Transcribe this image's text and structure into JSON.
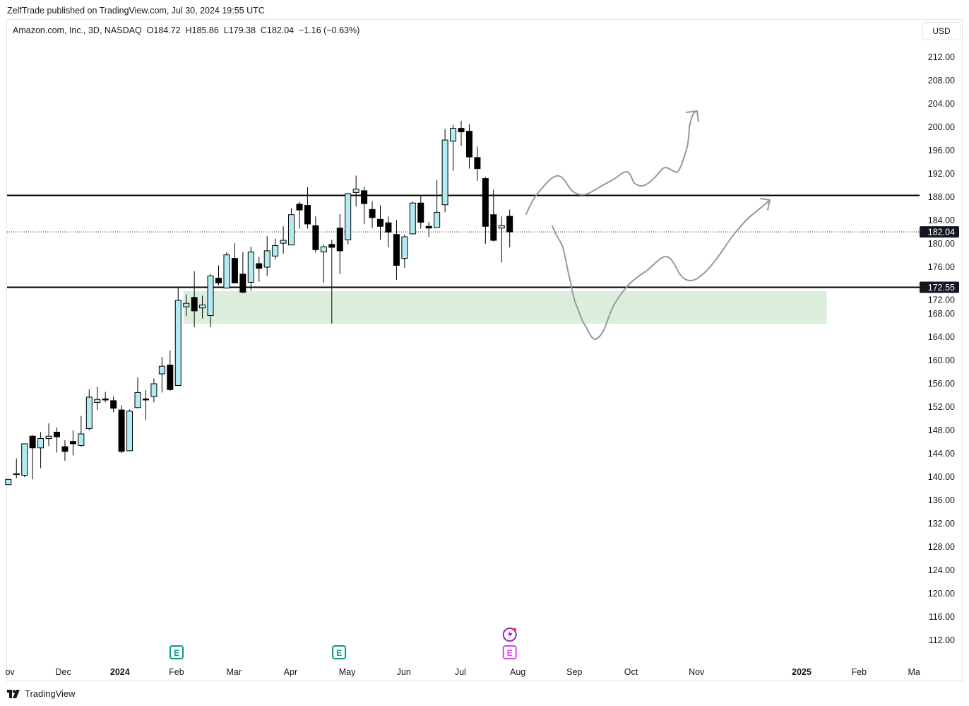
{
  "header": {
    "published": "ZelfTrade published on TradingView.com, Jul 30, 2024 19:55 UTC",
    "legend": "Amazon.com, Inc., 3D, NASDAQ  O184.72  H185.86  L179.38  C182.04  −1.16 (−0.63%)",
    "currency": "USD"
  },
  "footer": {
    "brand": "TradingView"
  },
  "colors": {
    "up": "#b2ebf2",
    "down": "#000000",
    "zone": "#dbeedc",
    "drawing": "#9598a1"
  },
  "chart_data": {
    "type": "candlestick",
    "symbol": "Amazon.com, Inc.",
    "interval": "3D",
    "exchange": "NASDAQ",
    "ylim": [
      110,
      214
    ],
    "y_ticks": [
      "212.00",
      "208.00",
      "204.00",
      "200.00",
      "196.00",
      "192.00",
      "188.00",
      "184.00",
      "180.00",
      "176.00",
      "172.00",
      "168.00",
      "164.00",
      "160.00",
      "156.00",
      "152.00",
      "148.00",
      "144.00",
      "140.00",
      "136.00",
      "132.00",
      "128.00",
      "124.00",
      "120.00",
      "116.00",
      "112.00"
    ],
    "x_ticks": [
      {
        "label": "ov",
        "bold": false,
        "bar": 0.2
      },
      {
        "label": "Dec",
        "bold": false,
        "bar": 6.8
      },
      {
        "label": "2024",
        "bold": true,
        "bar": 13.8
      },
      {
        "label": "Feb",
        "bold": false,
        "bar": 20.8
      },
      {
        "label": "Mar",
        "bold": false,
        "bar": 27.9
      },
      {
        "label": "Apr",
        "bold": false,
        "bar": 34.9
      },
      {
        "label": "May",
        "bold": false,
        "bar": 41.9
      },
      {
        "label": "Jun",
        "bold": false,
        "bar": 48.9
      },
      {
        "label": "Jul",
        "bold": false,
        "bar": 55.9
      },
      {
        "label": "Aug",
        "bold": false,
        "bar": 63
      },
      {
        "label": "Sep",
        "bold": false,
        "bar": 70
      },
      {
        "label": "Oct",
        "bold": false,
        "bar": 77
      },
      {
        "label": "Nov",
        "bold": false,
        "bar": 85.1
      },
      {
        "label": "2025",
        "bold": true,
        "bar": 98.1
      },
      {
        "label": "Feb",
        "bold": false,
        "bar": 105.2
      },
      {
        "label": "Ma",
        "bold": false,
        "bar": 112
      }
    ],
    "ohlc": [
      [
        138.7,
        139.6,
        138.6,
        139.6
      ],
      [
        140.6,
        143.2,
        139.8,
        140.6
      ],
      [
        140.3,
        145.7,
        140.0,
        145.7
      ],
      [
        147.0,
        147.2,
        139.6,
        145.0
      ],
      [
        145.0,
        147.7,
        141.5,
        146.6
      ],
      [
        146.6,
        149.2,
        145.3,
        147.0
      ],
      [
        147.7,
        148.5,
        144.2,
        146.9
      ],
      [
        145.2,
        146.3,
        142.8,
        144.4
      ],
      [
        146.1,
        148.0,
        143.7,
        145.7
      ],
      [
        145.4,
        150.5,
        145.2,
        147.4
      ],
      [
        148.3,
        155.0,
        148.0,
        153.7
      ],
      [
        152.8,
        155.5,
        151.5,
        153.3
      ],
      [
        153.4,
        154.6,
        152.8,
        153.3
      ],
      [
        153.1,
        153.8,
        151.1,
        151.8
      ],
      [
        151.5,
        152.3,
        144.1,
        144.4
      ],
      [
        144.5,
        151.6,
        144.5,
        151.3
      ],
      [
        151.9,
        157.1,
        151.9,
        154.5
      ],
      [
        153.4,
        154.9,
        149.8,
        153.3
      ],
      [
        153.8,
        156.9,
        152.8,
        156.0
      ],
      [
        157.7,
        160.6,
        154.5,
        159.0
      ],
      [
        159.2,
        161.7,
        154.8,
        155.0
      ],
      [
        155.7,
        172.5,
        155.6,
        170.3
      ],
      [
        169.2,
        171.3,
        167.6,
        169.8
      ],
      [
        170.8,
        175.3,
        165.7,
        168.5
      ],
      [
        169.0,
        171.1,
        167.2,
        169.5
      ],
      [
        167.7,
        174.8,
        165.7,
        174.5
      ],
      [
        174.1,
        176.3,
        172.9,
        173.3
      ],
      [
        172.4,
        178.6,
        172.4,
        178.1
      ],
      [
        177.5,
        180.1,
        173.2,
        173.3
      ],
      [
        174.8,
        178.6,
        171.5,
        171.7
      ],
      [
        173.4,
        179.5,
        172.0,
        178.6
      ],
      [
        176.6,
        177.8,
        173.5,
        175.8
      ],
      [
        176.0,
        181.3,
        174.5,
        178.8
      ],
      [
        177.9,
        180.9,
        177.3,
        179.7
      ],
      [
        180.1,
        183.0,
        178.3,
        180.6
      ],
      [
        179.8,
        186.1,
        179.8,
        185.0
      ],
      [
        186.8,
        187.2,
        182.6,
        185.8
      ],
      [
        186.6,
        189.7,
        182.6,
        183.4
      ],
      [
        183.1,
        184.7,
        178.5,
        179.0
      ],
      [
        178.6,
        179.9,
        173.3,
        179.5
      ],
      [
        179.9,
        180.7,
        166.3,
        179.4
      ],
      [
        182.7,
        185.1,
        174.8,
        178.8
      ],
      [
        180.7,
        188.7,
        179.9,
        188.6
      ],
      [
        188.8,
        191.7,
        186.4,
        189.4
      ],
      [
        189.1,
        189.8,
        183.4,
        186.9
      ],
      [
        185.9,
        187.3,
        182.7,
        184.5
      ],
      [
        184.2,
        186.6,
        180.7,
        183.0
      ],
      [
        183.6,
        184.7,
        179.4,
        182.0
      ],
      [
        181.6,
        184.1,
        173.8,
        176.3
      ],
      [
        177.5,
        181.6,
        175.9,
        181.2
      ],
      [
        181.7,
        187.2,
        181.6,
        187.0
      ],
      [
        187.0,
        188.2,
        182.6,
        183.7
      ],
      [
        183.0,
        183.8,
        181.2,
        182.7
      ],
      [
        182.8,
        190.9,
        182.7,
        185.4
      ],
      [
        186.7,
        199.7,
        185.4,
        197.8
      ],
      [
        197.6,
        200.4,
        192.5,
        199.8
      ],
      [
        199.8,
        201.1,
        196.8,
        199.2
      ],
      [
        199.3,
        200.5,
        192.9,
        194.9
      ],
      [
        194.8,
        196.7,
        190.8,
        192.9
      ],
      [
        191.2,
        191.5,
        180.0,
        183.0
      ],
      [
        185.0,
        189.3,
        180.4,
        180.6
      ],
      [
        182.7,
        184.7,
        176.8,
        183.1
      ],
      [
        184.72,
        185.86,
        179.38,
        182.04
      ]
    ],
    "horizontal_lines": [
      188.3,
      172.55
    ],
    "last_price": 182.04,
    "last_price_label": "182.04",
    "level_label": "172.55",
    "zone": {
      "top": 171.9,
      "bottom": 166.3,
      "start_bar": 22,
      "end_bar": 101.2
    }
  },
  "events": [
    {
      "type": "earnings",
      "label": "E",
      "bar": 20.8,
      "color": "#089981"
    },
    {
      "type": "earnings",
      "label": "E",
      "bar": 40.9,
      "color": "#089981"
    },
    {
      "type": "earnings",
      "label": "E",
      "bar": 62,
      "color": "#e040fb"
    }
  ]
}
